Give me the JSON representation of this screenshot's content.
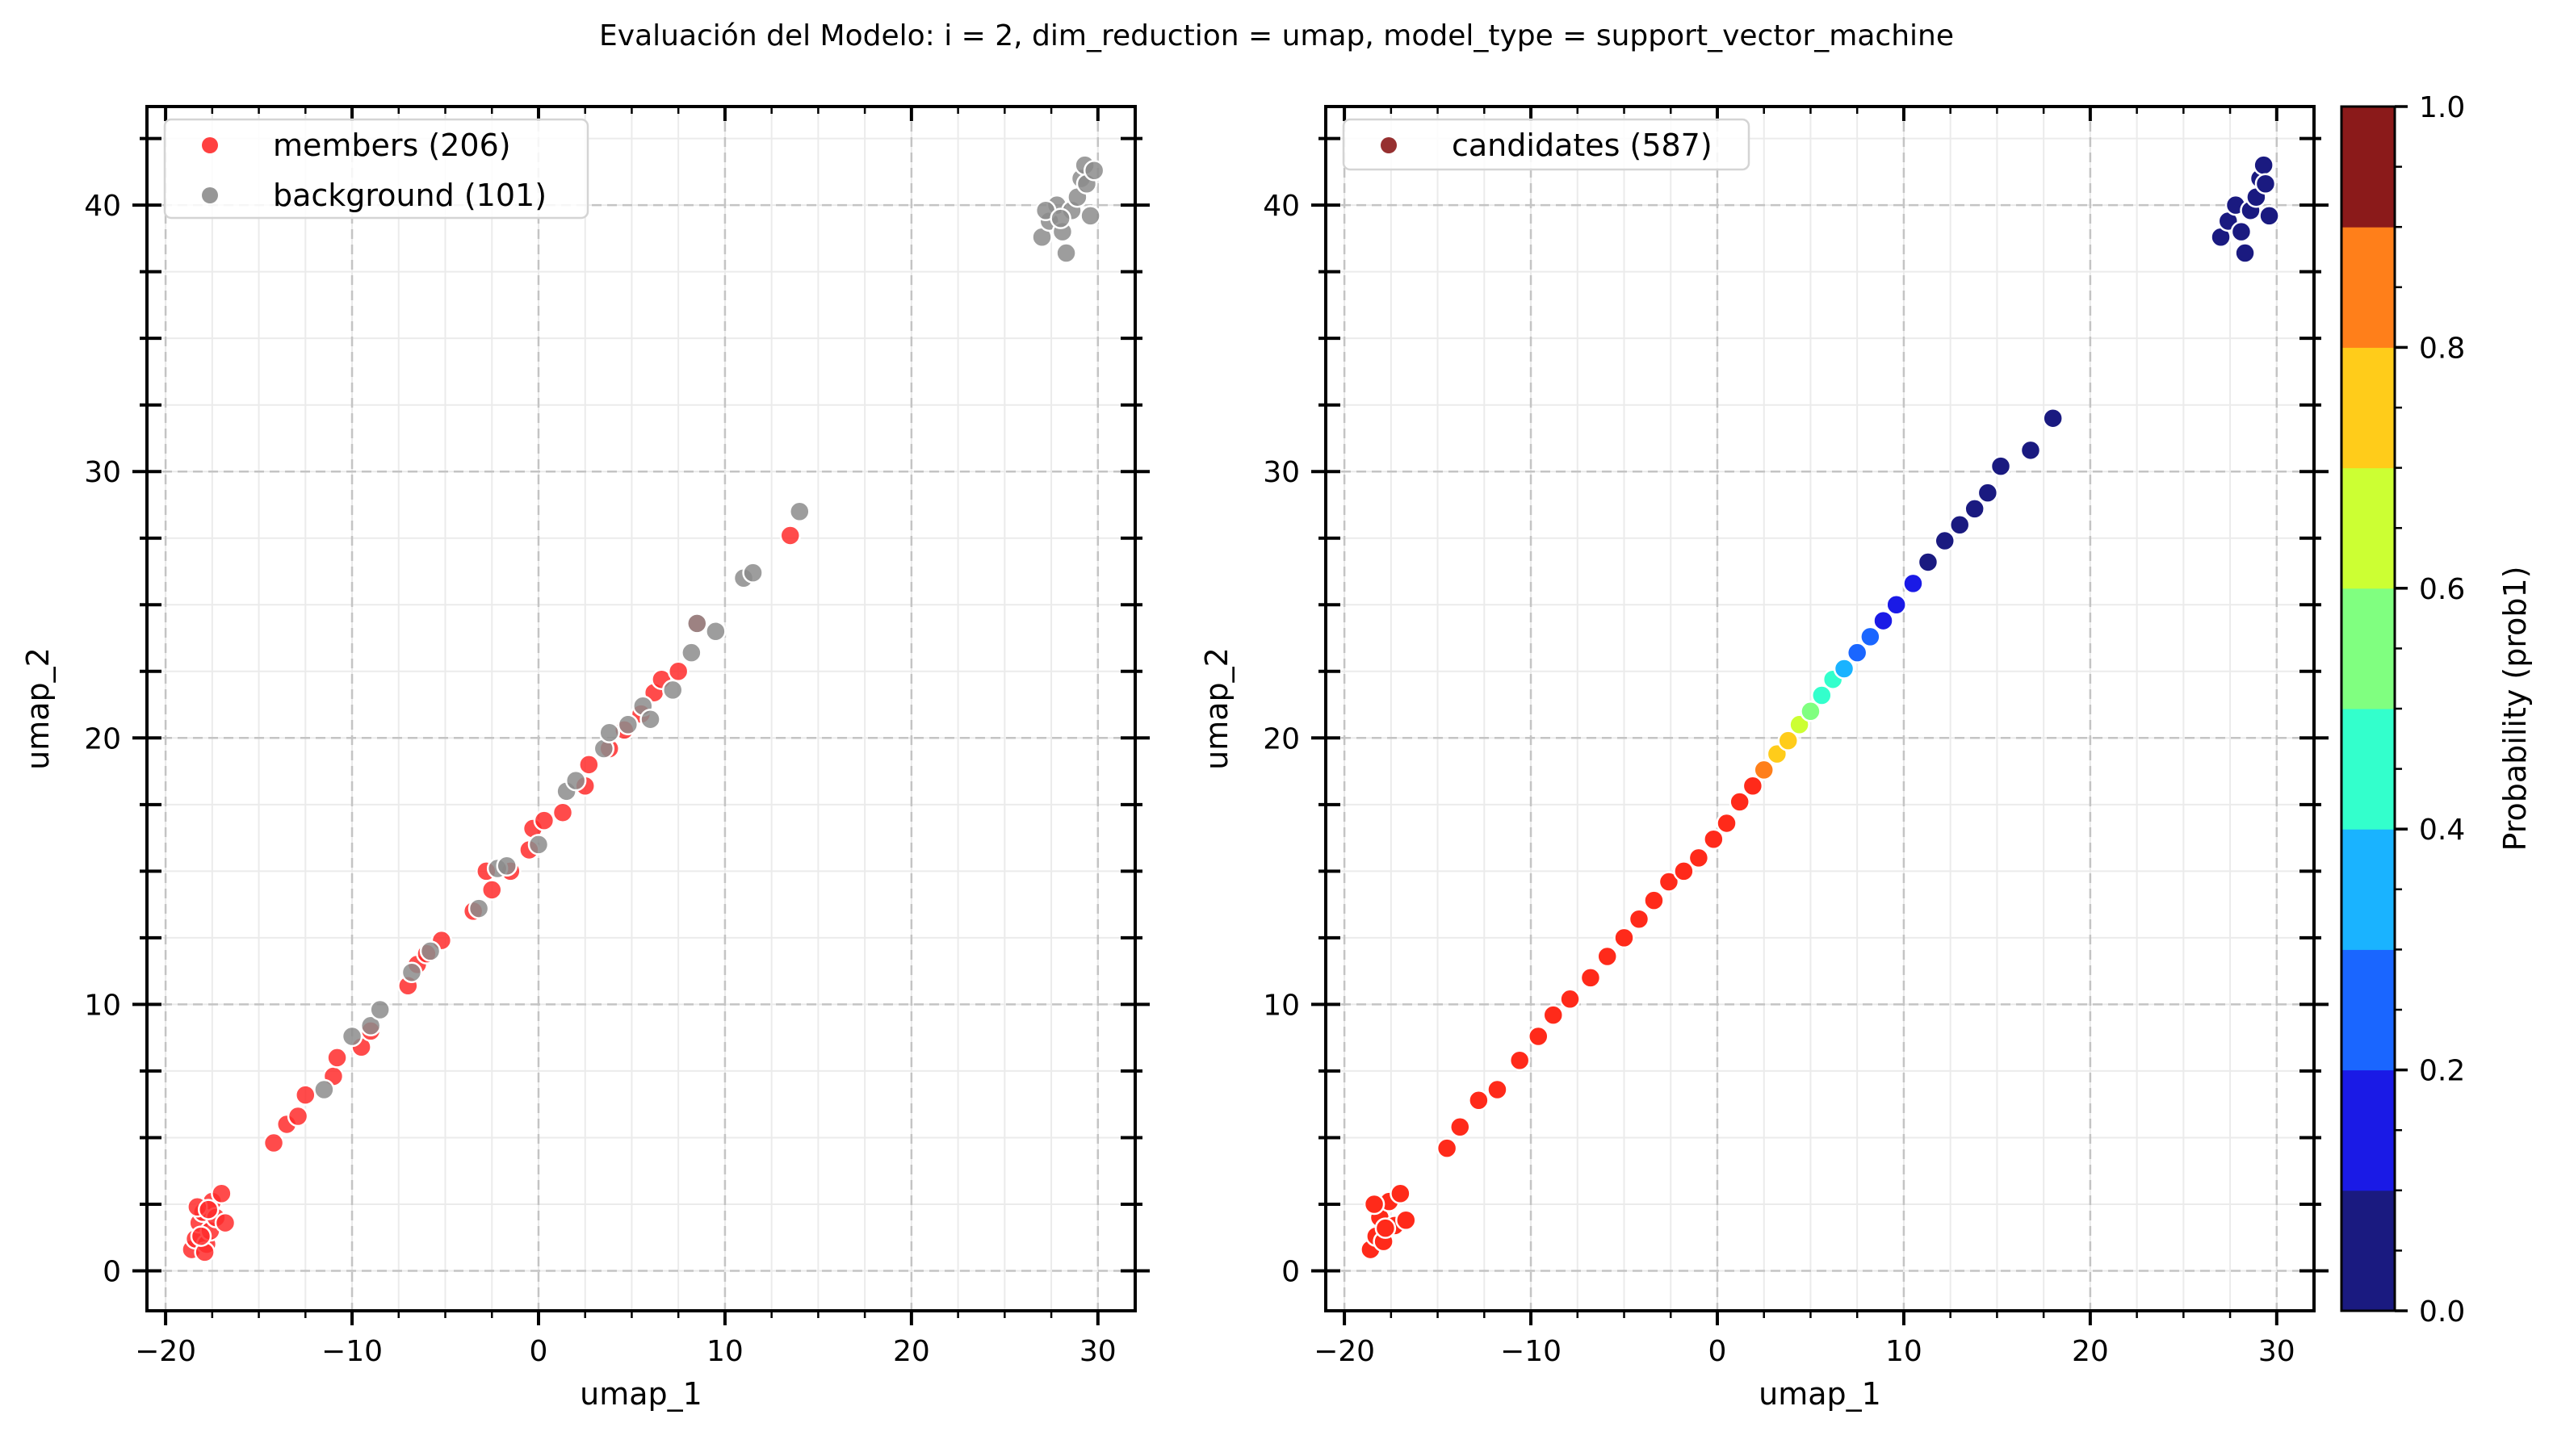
{
  "figure": {
    "title": "Evaluación del Modelo: i = 2, dim_reduction = umap, model_type = support_vector_machine"
  },
  "colormap": {
    "name": "jet",
    "bins": 10,
    "colors": [
      "#1a1a80",
      "#1a1ae6",
      "#1a66ff",
      "#1ab3ff",
      "#33ffcc",
      "#80ff80",
      "#ccff33",
      "#ffcc1a",
      "#ff7f1a",
      "#ff2a1a",
      "#8b1a1a"
    ],
    "label": "Probability (prob1)",
    "ticks": [
      "0.0",
      "0.2",
      "0.4",
      "0.6",
      "0.8",
      "1.0"
    ]
  },
  "chart_data": [
    {
      "type": "scatter",
      "xlabel": "umap_1",
      "ylabel": "umap_2",
      "xlim": [
        -21,
        32
      ],
      "ylim": [
        -1.5,
        43.7
      ],
      "xticks": [
        "−20",
        "−10",
        "0",
        "10",
        "20",
        "30"
      ],
      "yticks": [
        "0",
        "10",
        "20",
        "30",
        "40"
      ],
      "grid": true,
      "legend_position": "top-left",
      "series": [
        {
          "name": "members (206)",
          "color": "#ff2b2b",
          "points": [
            [
              -18.6,
              0.8
            ],
            [
              -18.4,
              1.2
            ],
            [
              -18.2,
              1.8
            ],
            [
              -18.0,
              2.2
            ],
            [
              -17.8,
              1.0
            ],
            [
              -17.6,
              1.5
            ],
            [
              -17.5,
              2.6
            ],
            [
              -17.9,
              0.7
            ],
            [
              -18.3,
              2.4
            ],
            [
              -17.3,
              2.0
            ],
            [
              -17.0,
              2.9
            ],
            [
              -16.8,
              1.8
            ],
            [
              -18.1,
              1.3
            ],
            [
              -17.7,
              2.3
            ],
            [
              -14.2,
              4.8
            ],
            [
              -13.5,
              5.5
            ],
            [
              -12.9,
              5.8
            ],
            [
              -12.5,
              6.6
            ],
            [
              -11.0,
              7.3
            ],
            [
              -10.8,
              8.0
            ],
            [
              -9.5,
              8.4
            ],
            [
              -9.0,
              9.0
            ],
            [
              -7.0,
              10.7
            ],
            [
              -6.5,
              11.5
            ],
            [
              -6.0,
              11.9
            ],
            [
              -5.2,
              12.4
            ],
            [
              -3.5,
              13.5
            ],
            [
              -2.5,
              14.3
            ],
            [
              -2.8,
              15.0
            ],
            [
              -1.5,
              15.0
            ],
            [
              -0.5,
              15.8
            ],
            [
              -0.3,
              16.6
            ],
            [
              0.3,
              16.9
            ],
            [
              1.3,
              17.2
            ],
            [
              2.5,
              18.2
            ],
            [
              2.7,
              19.0
            ],
            [
              3.8,
              19.6
            ],
            [
              4.6,
              20.3
            ],
            [
              5.5,
              20.9
            ],
            [
              6.2,
              21.7
            ],
            [
              6.6,
              22.2
            ],
            [
              7.5,
              22.5
            ],
            [
              8.5,
              24.3
            ],
            [
              13.5,
              27.6
            ]
          ]
        },
        {
          "name": "background (101)",
          "color": "#8c8c8c",
          "points": [
            [
              -11.5,
              6.8
            ],
            [
              -10.0,
              8.8
            ],
            [
              -9.0,
              9.2
            ],
            [
              -8.5,
              9.8
            ],
            [
              -6.8,
              11.2
            ],
            [
              -5.8,
              12.0
            ],
            [
              -3.2,
              13.6
            ],
            [
              -2.2,
              15.1
            ],
            [
              -1.7,
              15.2
            ],
            [
              0.0,
              16.0
            ],
            [
              1.5,
              18.0
            ],
            [
              2.0,
              18.4
            ],
            [
              3.5,
              19.6
            ],
            [
              3.8,
              20.2
            ],
            [
              4.8,
              20.5
            ],
            [
              5.6,
              21.2
            ],
            [
              6.0,
              20.7
            ],
            [
              7.2,
              21.8
            ],
            [
              8.2,
              23.2
            ],
            [
              8.5,
              24.3
            ],
            [
              9.5,
              24.0
            ],
            [
              11.0,
              26.0
            ],
            [
              11.5,
              26.2
            ],
            [
              14.0,
              28.5
            ],
            [
              27.0,
              38.8
            ],
            [
              27.4,
              39.4
            ],
            [
              27.8,
              40.0
            ],
            [
              28.1,
              39.0
            ],
            [
              28.3,
              38.2
            ],
            [
              28.6,
              39.8
            ],
            [
              28.9,
              40.3
            ],
            [
              29.1,
              41.0
            ],
            [
              29.3,
              41.5
            ],
            [
              29.6,
              39.6
            ],
            [
              29.4,
              40.8
            ],
            [
              27.2,
              39.8
            ],
            [
              28.0,
              39.5
            ],
            [
              29.8,
              41.3
            ]
          ]
        }
      ]
    },
    {
      "type": "scatter",
      "xlabel": "umap_1",
      "ylabel": "umap_2",
      "xlim": [
        -21,
        32
      ],
      "ylim": [
        -1.5,
        43.7
      ],
      "xticks": [
        "−20",
        "−10",
        "0",
        "10",
        "20",
        "30"
      ],
      "yticks": [
        "0",
        "10",
        "20",
        "30",
        "40"
      ],
      "grid": true,
      "legend_position": "top-left",
      "color_by": "prob1",
      "series": [
        {
          "name": "candidates (587)",
          "legend_color": "#8b1a1a",
          "points": [
            [
              -18.6,
              0.8,
              1.0
            ],
            [
              -18.3,
              1.3,
              1.0
            ],
            [
              -18.1,
              2.0,
              1.0
            ],
            [
              -17.9,
              1.1,
              1.0
            ],
            [
              -17.6,
              2.6,
              1.0
            ],
            [
              -17.3,
              1.7,
              1.0
            ],
            [
              -17.0,
              2.9,
              1.0
            ],
            [
              -16.7,
              1.9,
              1.0
            ],
            [
              -18.4,
              2.5,
              1.0
            ],
            [
              -17.8,
              1.6,
              1.0
            ],
            [
              -14.5,
              4.6,
              1.0
            ],
            [
              -13.8,
              5.4,
              1.0
            ],
            [
              -12.8,
              6.4,
              1.0
            ],
            [
              -11.8,
              6.8,
              1.0
            ],
            [
              -10.6,
              7.9,
              1.0
            ],
            [
              -9.6,
              8.8,
              1.0
            ],
            [
              -8.8,
              9.6,
              1.0
            ],
            [
              -7.9,
              10.2,
              1.0
            ],
            [
              -6.8,
              11.0,
              1.0
            ],
            [
              -5.9,
              11.8,
              1.0
            ],
            [
              -5.0,
              12.5,
              1.0
            ],
            [
              -4.2,
              13.2,
              1.0
            ],
            [
              -3.4,
              13.9,
              1.0
            ],
            [
              -2.6,
              14.6,
              1.0
            ],
            [
              -1.8,
              15.0,
              1.0
            ],
            [
              -1.0,
              15.5,
              1.0
            ],
            [
              -0.2,
              16.2,
              0.97
            ],
            [
              0.5,
              16.8,
              0.95
            ],
            [
              1.2,
              17.6,
              0.93
            ],
            [
              1.9,
              18.2,
              0.92
            ],
            [
              2.5,
              18.8,
              0.85
            ],
            [
              3.2,
              19.4,
              0.75
            ],
            [
              3.8,
              19.9,
              0.7
            ],
            [
              4.4,
              20.5,
              0.62
            ],
            [
              5.0,
              21.0,
              0.55
            ],
            [
              5.6,
              21.6,
              0.48
            ],
            [
              6.2,
              22.2,
              0.42
            ],
            [
              6.8,
              22.6,
              0.35
            ],
            [
              7.5,
              23.2,
              0.28
            ],
            [
              8.2,
              23.8,
              0.22
            ],
            [
              8.9,
              24.4,
              0.18
            ],
            [
              9.6,
              25.0,
              0.13
            ],
            [
              10.5,
              25.8,
              0.1
            ],
            [
              11.3,
              26.6,
              0.08
            ],
            [
              12.2,
              27.4,
              0.06
            ],
            [
              13.0,
              28.0,
              0.04
            ],
            [
              13.8,
              28.6,
              0.03
            ],
            [
              14.5,
              29.2,
              0.02
            ],
            [
              15.2,
              30.2,
              0.02
            ],
            [
              16.8,
              30.8,
              0.01
            ],
            [
              18.0,
              32.0,
              0.01
            ],
            [
              27.0,
              38.8,
              0.0
            ],
            [
              27.4,
              39.4,
              0.0
            ],
            [
              27.8,
              40.0,
              0.0
            ],
            [
              28.1,
              39.0,
              0.0
            ],
            [
              28.3,
              38.2,
              0.0
            ],
            [
              28.6,
              39.8,
              0.0
            ],
            [
              28.9,
              40.3,
              0.0
            ],
            [
              29.1,
              41.0,
              0.0
            ],
            [
              29.3,
              41.5,
              0.0
            ],
            [
              29.6,
              39.6,
              0.0
            ],
            [
              29.4,
              40.8,
              0.0
            ]
          ]
        }
      ]
    }
  ]
}
